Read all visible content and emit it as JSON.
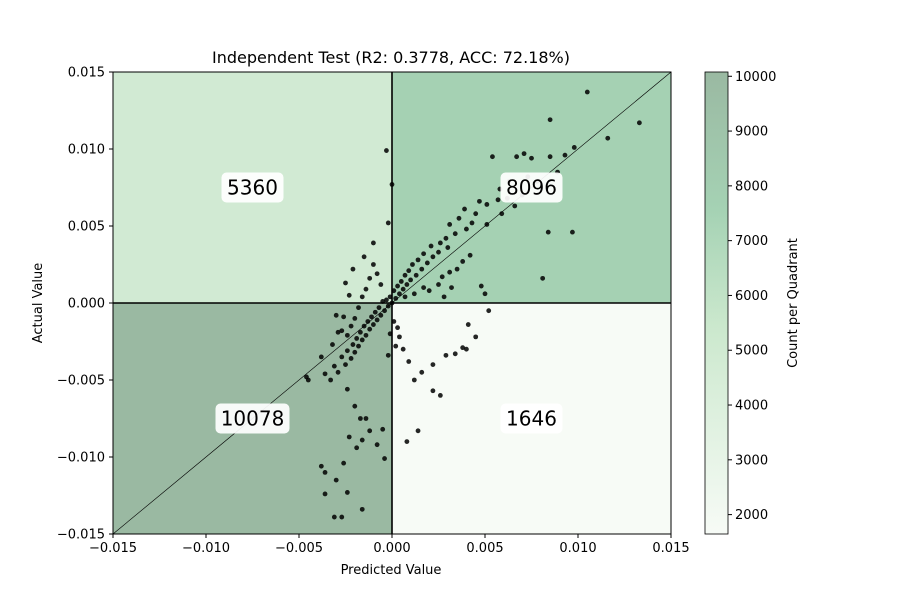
{
  "chart_data": {
    "type": "scatter",
    "title": "Independent Test (R2: 0.3778, ACC: 72.18%)",
    "xlabel": "Predicted Value",
    "ylabel": "Actual Value",
    "xlim": [
      -0.015,
      0.015
    ],
    "ylim": [
      -0.015,
      0.015
    ],
    "x_ticks": [
      "−0.015",
      "−0.010",
      "−0.005",
      "0.000",
      "0.005",
      "0.010",
      "0.015"
    ],
    "y_ticks": [
      "−0.015",
      "−0.010",
      "−0.005",
      "0.000",
      "0.005",
      "0.010",
      "0.015"
    ],
    "x_tick_values": [
      -0.015,
      -0.01,
      -0.005,
      0,
      0.005,
      0.01,
      0.015
    ],
    "y_tick_values": [
      -0.015,
      -0.01,
      -0.005,
      0,
      0.005,
      0.01,
      0.015
    ],
    "quadrants": [
      {
        "position": "top-left",
        "count": 5360,
        "label": "5360",
        "color": "#d1ead3"
      },
      {
        "position": "top-right",
        "count": 8096,
        "label": "8096",
        "color": "#a5d1b3"
      },
      {
        "position": "bottom-left",
        "count": 10078,
        "label": "10078",
        "color": "#9ab9a2"
      },
      {
        "position": "bottom-right",
        "count": 1646,
        "label": "1646",
        "color": "#f7fbf6"
      }
    ],
    "reference_line": {
      "type": "identity",
      "label": "y = x"
    },
    "colorbar": {
      "label": "Count per Quadrant",
      "min": 1646,
      "max": 10078,
      "tick_values": [
        2000,
        3000,
        4000,
        5000,
        6000,
        7000,
        8000,
        9000,
        10000
      ],
      "ticks": [
        "2000",
        "3000",
        "4000",
        "5000",
        "6000",
        "7000",
        "8000",
        "9000",
        "10000"
      ],
      "color_low": "#f7fbf6",
      "color_mid": "#cbe8cd",
      "color_high": "#9ab9a2"
    },
    "point_color": "#000000",
    "points": [
      [
        0.0105,
        0.0137
      ],
      [
        0.0133,
        0.0117
      ],
      [
        0.0085,
        0.0119
      ],
      [
        0.0116,
        0.0107
      ],
      [
        0.0098,
        0.0101
      ],
      [
        0.0093,
        0.0096
      ],
      [
        0.0071,
        0.0097
      ],
      [
        0.0067,
        0.0095
      ],
      [
        0.0085,
        0.0095
      ],
      [
        0.0075,
        0.0094
      ],
      [
        0.0054,
        0.0095
      ],
      [
        0.0073,
        0.0082
      ],
      [
        0.0089,
        0.0085
      ],
      [
        0.0078,
        0.0079
      ],
      [
        0.007,
        0.007
      ],
      [
        0.0063,
        0.0079
      ],
      [
        0.0058,
        0.0074
      ],
      [
        0.0066,
        0.0063
      ],
      [
        0.0062,
        0.0068
      ],
      [
        0.0057,
        0.0067
      ],
      [
        0.0051,
        0.0064
      ],
      [
        0.0059,
        0.0058
      ],
      [
        0.0047,
        0.0066
      ],
      [
        0.0051,
        0.0051
      ],
      [
        0.0084,
        0.0046
      ],
      [
        0.0097,
        0.0046
      ],
      [
        0.0081,
        0.0016
      ],
      [
        0.0045,
        0.0058
      ],
      [
        0.0043,
        0.0052
      ],
      [
        0.0039,
        0.0061
      ],
      [
        0.004,
        0.0048
      ],
      [
        0.0036,
        0.0055
      ],
      [
        0.0034,
        0.0045
      ],
      [
        0.0031,
        0.0051
      ],
      [
        0.0029,
        0.0042
      ],
      [
        0.003,
        0.0036
      ],
      [
        0.0026,
        0.0039
      ],
      [
        0.0025,
        0.0033
      ],
      [
        0.0021,
        0.0037
      ],
      [
        0.0022,
        0.003
      ],
      [
        0.0019,
        0.0026
      ],
      [
        0.0017,
        0.0032
      ],
      [
        0.0016,
        0.0022
      ],
      [
        0.0014,
        0.0028
      ],
      [
        0.0013,
        0.0018
      ],
      [
        0.0011,
        0.0025
      ],
      [
        0.001,
        0.0015
      ],
      [
        0.0009,
        0.0021
      ],
      [
        0.0008,
        0.0012
      ],
      [
        0.0007,
        0.0018
      ],
      [
        0.0006,
        0.0009
      ],
      [
        0.0005,
        0.0014
      ],
      [
        0.0004,
        0.0006
      ],
      [
        0.0003,
        0.0011
      ],
      [
        0.0002,
        0.0003
      ],
      [
        0.0001,
        0.0008
      ],
      [
        0.0,
        0.0
      ],
      [
        -0.0001,
        0.0004
      ],
      [
        -0.0002,
        -0.0002
      ],
      [
        -0.0003,
        0.0002
      ],
      [
        -0.0004,
        -0.0005
      ],
      [
        -0.0005,
        0.0001
      ],
      [
        -0.0006,
        -0.0008
      ],
      [
        -0.0007,
        -0.0003
      ],
      [
        -0.0008,
        -0.0011
      ],
      [
        -0.0009,
        -0.0006
      ],
      [
        -0.001,
        -0.0014
      ],
      [
        -0.0011,
        -0.0009
      ],
      [
        -0.0012,
        -0.0017
      ],
      [
        -0.0013,
        -0.0012
      ],
      [
        -0.0014,
        -0.0021
      ],
      [
        -0.0015,
        -0.0015
      ],
      [
        -0.0016,
        -0.0024
      ],
      [
        -0.0017,
        -0.0019
      ],
      [
        -0.0018,
        -0.0028
      ],
      [
        -0.0019,
        -0.0023
      ],
      [
        -0.002,
        -0.0032
      ],
      [
        -0.0021,
        -0.0027
      ],
      [
        -0.0022,
        -0.0036
      ],
      [
        -0.0024,
        -0.0031
      ],
      [
        -0.0025,
        -0.004
      ],
      [
        -0.0027,
        -0.0035
      ],
      [
        -0.0029,
        -0.0045
      ],
      [
        -0.0031,
        -0.0041
      ],
      [
        -0.0033,
        -0.005
      ],
      [
        -0.0036,
        -0.0046
      ],
      [
        -0.0046,
        -0.0048
      ],
      [
        -0.0045,
        -0.005
      ],
      [
        -0.0003,
        0.0099
      ],
      [
        0.0,
        0.0077
      ],
      [
        -0.0002,
        0.0052
      ],
      [
        -0.001,
        0.0039
      ],
      [
        -0.0015,
        0.003
      ],
      [
        -0.0021,
        0.0022
      ],
      [
        -0.0025,
        0.0013
      ],
      [
        -0.0023,
        0.0005
      ],
      [
        -0.003,
        -0.0008
      ],
      [
        -0.0029,
        -0.0019
      ],
      [
        -0.0032,
        -0.0027
      ],
      [
        -0.0038,
        -0.0035
      ],
      [
        -0.0024,
        -0.0056
      ],
      [
        -0.002,
        -0.0067
      ],
      [
        -0.0017,
        -0.0075
      ],
      [
        -0.0012,
        -0.0083
      ],
      [
        -0.0008,
        -0.0092
      ],
      [
        -0.0004,
        -0.0101
      ],
      [
        -0.0019,
        -0.0094
      ],
      [
        -0.0023,
        -0.0087
      ],
      [
        -0.0016,
        -0.0089
      ],
      [
        -0.0024,
        -0.0123
      ],
      [
        -0.003,
        -0.0115
      ],
      [
        -0.0036,
        -0.011
      ],
      [
        -0.0038,
        -0.0106
      ],
      [
        -0.0036,
        -0.0124
      ],
      [
        -0.0026,
        -0.0104
      ],
      [
        -0.0031,
        -0.0139
      ],
      [
        -0.0027,
        -0.0139
      ],
      [
        -0.0016,
        -0.0134
      ],
      [
        -0.0014,
        -0.0075
      ],
      [
        -0.0005,
        -0.0082
      ],
      [
        0.0014,
        -0.0083
      ],
      [
        0.0008,
        -0.009
      ],
      [
        0.0026,
        -0.006
      ],
      [
        0.0022,
        -0.0057
      ],
      [
        0.0038,
        -0.0029
      ],
      [
        0.0034,
        -0.0033
      ],
      [
        0.0045,
        -0.0022
      ],
      [
        0.0041,
        -0.0014
      ],
      [
        0.004,
        -0.003
      ],
      [
        0.0052,
        -0.0005
      ],
      [
        0.005,
        0.0006
      ],
      [
        0.0048,
        0.0011
      ],
      [
        0.0029,
        -0.0034
      ],
      [
        0.0016,
        -0.0045
      ],
      [
        0.0012,
        -0.005
      ],
      [
        0.0022,
        -0.004
      ],
      [
        0.0009,
        -0.0038
      ],
      [
        0.0006,
        -0.003
      ],
      [
        0.0004,
        -0.0022
      ],
      [
        0.0003,
        -0.0016
      ],
      [
        0.0001,
        -0.0012
      ],
      [
        -0.0001,
        -0.002
      ],
      [
        0.0002,
        -0.0028
      ],
      [
        -0.0002,
        -0.0034
      ],
      [
        0.0007,
        0.0004
      ],
      [
        0.0012,
        0.0006
      ],
      [
        0.0017,
        0.001
      ],
      [
        0.002,
        0.0008
      ],
      [
        0.0025,
        0.0012
      ],
      [
        0.0027,
        0.0017
      ],
      [
        0.0031,
        0.002
      ],
      [
        0.0035,
        0.0022
      ],
      [
        0.0038,
        0.0027
      ],
      [
        0.0042,
        0.0031
      ],
      [
        0.0032,
        0.001
      ],
      [
        0.0028,
        0.0004
      ],
      [
        -0.0006,
        0.0012
      ],
      [
        -0.0008,
        0.0019
      ],
      [
        -0.001,
        0.0025
      ],
      [
        -0.0012,
        0.0016
      ],
      [
        -0.0014,
        0.0009
      ],
      [
        -0.0016,
        0.0004
      ],
      [
        -0.0018,
        -0.0003
      ],
      [
        -0.002,
        -0.001
      ],
      [
        -0.0022,
        -0.0015
      ],
      [
        -0.0024,
        -0.0021
      ],
      [
        -0.0026,
        -0.0009
      ],
      [
        -0.0027,
        -0.0018
      ]
    ]
  }
}
